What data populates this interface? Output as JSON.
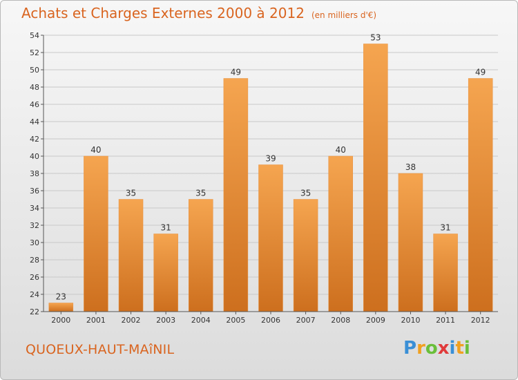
{
  "title": "Achats et Charges Externes 2000 à 2012",
  "subtitle": "(en milliers d'€)",
  "place": "QUOEUX-HAUT-MAîNIL",
  "logo": {
    "letters": [
      "P",
      "r",
      "o",
      "x",
      "i",
      "t",
      "i"
    ],
    "colors": [
      "#3a8fd6",
      "#f0a020",
      "#6abf3a",
      "#e03a3a",
      "#3a8fd6",
      "#f0a020",
      "#6abf3a"
    ]
  },
  "colors": {
    "bar_top": "#f5a550",
    "bar_bottom": "#cd6f1e",
    "grid": "#c8c8c8",
    "text": "#333333",
    "accent": "#d9641f"
  },
  "chart_data": {
    "type": "bar",
    "categories": [
      "2000",
      "2001",
      "2002",
      "2003",
      "2004",
      "2005",
      "2006",
      "2007",
      "2008",
      "2009",
      "2010",
      "2011",
      "2012"
    ],
    "values": [
      23,
      40,
      35,
      31,
      35,
      49,
      39,
      35,
      40,
      53,
      38,
      31,
      49
    ],
    "title": "Achats et Charges Externes 2000 à 2012",
    "subtitle": "(en milliers d'€)",
    "xlabel": "",
    "ylabel": "",
    "ylim": [
      22,
      54
    ],
    "yticks": [
      22,
      24,
      26,
      28,
      30,
      32,
      34,
      36,
      38,
      40,
      42,
      44,
      46,
      48,
      50,
      52,
      54
    ],
    "grid": true
  }
}
